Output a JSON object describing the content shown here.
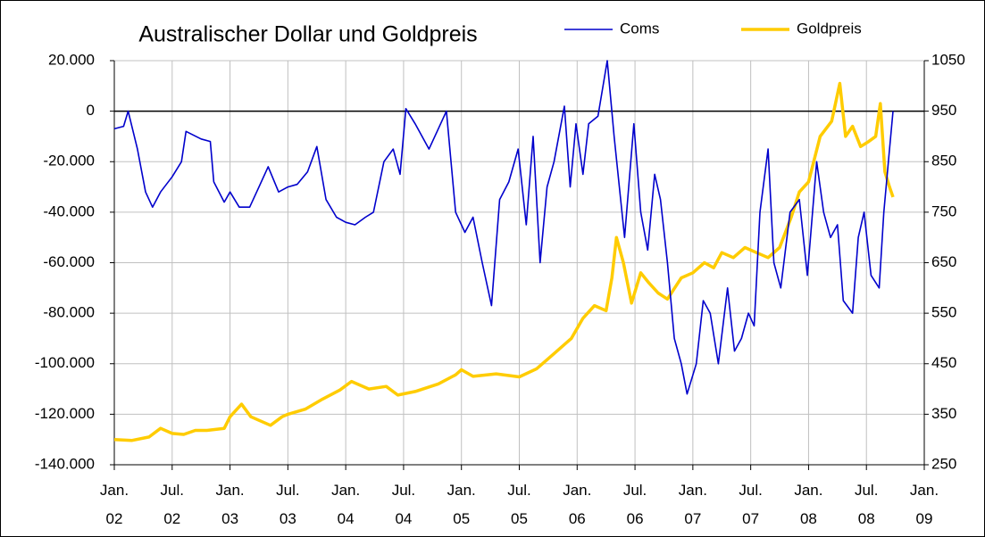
{
  "chart_data": {
    "type": "line",
    "title": "Australischer Dollar und Goldpreis",
    "series": [
      {
        "name": "Coms",
        "color": "#0000cc",
        "axis": "y",
        "x": [
          2002.0,
          2002.08,
          2002.12,
          2002.2,
          2002.27,
          2002.33,
          2002.4,
          2002.5,
          2002.58,
          2002.62,
          2002.75,
          2002.83,
          2002.86,
          2002.95,
          2003.0,
          2003.08,
          2003.17,
          2003.25,
          2003.33,
          2003.42,
          2003.5,
          2003.58,
          2003.67,
          2003.75,
          2003.83,
          2003.92,
          2004.0,
          2004.08,
          2004.17,
          2004.24,
          2004.33,
          2004.41,
          2004.47,
          2004.52,
          2004.6,
          2004.72,
          2004.79,
          2004.87,
          2004.95,
          2005.03,
          2005.1,
          2005.18,
          2005.26,
          2005.33,
          2005.41,
          2005.49,
          2005.56,
          2005.62,
          2005.68,
          2005.74,
          2005.8,
          2005.89,
          2005.94,
          2005.99,
          2006.05,
          2006.1,
          2006.18,
          2006.26,
          2006.32,
          2006.41,
          2006.49,
          2006.55,
          2006.61,
          2006.67,
          2006.72,
          2006.78,
          2006.84,
          2006.9,
          2006.95,
          2007.03,
          2007.09,
          2007.15,
          2007.22,
          2007.3,
          2007.36,
          2007.42,
          2007.48,
          2007.53,
          2007.58,
          2007.65,
          2007.7,
          2007.76,
          2007.84,
          2007.92,
          2007.99,
          2008.07,
          2008.13,
          2008.19,
          2008.25,
          2008.3,
          2008.38,
          2008.43,
          2008.48,
          2008.54,
          2008.61,
          2008.65,
          2008.69,
          2008.73
        ],
        "values": [
          -7000,
          -6000,
          0,
          -15000,
          -32000,
          -38000,
          -32000,
          -26000,
          -20000,
          -8000,
          -11000,
          -12000,
          -28000,
          -36000,
          -32000,
          -38000,
          -38000,
          -30000,
          -22000,
          -32000,
          -30000,
          -29000,
          -24000,
          -14000,
          -35000,
          -42000,
          -44000,
          -45000,
          -42000,
          -40000,
          -20000,
          -15000,
          -25000,
          1000,
          -5000,
          -15000,
          -8000,
          0,
          -40000,
          -48000,
          -42000,
          -60000,
          -77000,
          -35000,
          -28000,
          -15000,
          -45000,
          -10000,
          -60000,
          -30000,
          -20000,
          2000,
          -30000,
          -5000,
          -25000,
          -5000,
          -2000,
          20000,
          -10000,
          -50000,
          -5000,
          -40000,
          -55000,
          -25000,
          -35000,
          -60000,
          -90000,
          -100000,
          -112000,
          -100000,
          -75000,
          -80000,
          -100000,
          -70000,
          -95000,
          -90000,
          -80000,
          -85000,
          -40000,
          -15000,
          -60000,
          -70000,
          -40000,
          -35000,
          -65000,
          -20000,
          -40000,
          -50000,
          -45000,
          -75000,
          -80000,
          -50000,
          -40000,
          -65000,
          -70000,
          -40000,
          -20000,
          0
        ]
      },
      {
        "name": "Goldpreis",
        "color": "#ffcc00",
        "axis": "y2",
        "x": [
          2002.0,
          2002.15,
          2002.3,
          2002.4,
          2002.5,
          2002.6,
          2002.7,
          2002.8,
          2002.95,
          2003.0,
          2003.1,
          2003.18,
          2003.25,
          2003.35,
          2003.45,
          2003.5,
          2003.65,
          2003.8,
          2003.95,
          2004.05,
          2004.2,
          2004.35,
          2004.45,
          2004.6,
          2004.8,
          2004.95,
          2005.0,
          2005.1,
          2005.3,
          2005.5,
          2005.65,
          2005.8,
          2005.95,
          2006.05,
          2006.15,
          2006.25,
          2006.3,
          2006.34,
          2006.4,
          2006.47,
          2006.55,
          2006.62,
          2006.7,
          2006.78,
          2006.9,
          2007.0,
          2007.1,
          2007.18,
          2007.25,
          2007.35,
          2007.45,
          2007.55,
          2007.65,
          2007.75,
          2007.85,
          2007.92,
          2008.0,
          2008.1,
          2008.2,
          2008.27,
          2008.32,
          2008.38,
          2008.45,
          2008.52,
          2008.58,
          2008.62,
          2008.66,
          2008.7,
          2008.73
        ],
        "values": [
          300,
          298,
          305,
          322,
          312,
          310,
          318,
          318,
          322,
          345,
          370,
          345,
          338,
          328,
          345,
          350,
          360,
          380,
          398,
          415,
          400,
          405,
          388,
          395,
          410,
          428,
          438,
          425,
          430,
          424,
          440,
          470,
          500,
          540,
          565,
          555,
          620,
          700,
          650,
          570,
          630,
          610,
          590,
          578,
          620,
          630,
          650,
          640,
          670,
          660,
          680,
          670,
          660,
          680,
          740,
          790,
          810,
          900,
          930,
          1005,
          900,
          920,
          880,
          890,
          900,
          965,
          830,
          800,
          780
        ]
      }
    ],
    "xlim": [
      2002,
      2009
    ],
    "xticks": [
      {
        "value": 2002,
        "label": "Jan. 02"
      },
      {
        "value": 2002.5,
        "label": "Jul. 02"
      },
      {
        "value": 2003,
        "label": "Jan. 03"
      },
      {
        "value": 2003.5,
        "label": "Jul. 03"
      },
      {
        "value": 2004,
        "label": "Jan. 04"
      },
      {
        "value": 2004.5,
        "label": "Jul. 04"
      },
      {
        "value": 2005,
        "label": "Jan. 05"
      },
      {
        "value": 2005.5,
        "label": "Jul. 05"
      },
      {
        "value": 2006,
        "label": "Jan. 06"
      },
      {
        "value": 2006.5,
        "label": "Jul. 06"
      },
      {
        "value": 2007,
        "label": "Jan. 07"
      },
      {
        "value": 2007.5,
        "label": "Jul. 07"
      },
      {
        "value": 2008,
        "label": "Jan. 08"
      },
      {
        "value": 2008.5,
        "label": "Jul. 08"
      },
      {
        "value": 2009,
        "label": "Jan. 09"
      }
    ],
    "ylim": [
      -140000,
      20000
    ],
    "yticks": [
      {
        "value": 20000,
        "label": "20.000"
      },
      0,
      {
        "value": -20000,
        "label": "-20.000"
      },
      {
        "value": -40000,
        "label": "-40.000"
      },
      {
        "value": -60000,
        "label": "-60.000"
      },
      {
        "value": -80000,
        "label": "-80.000"
      },
      {
        "value": -100000,
        "label": "-100.000"
      },
      {
        "value": -120000,
        "label": "-120.000"
      },
      {
        "value": -140000,
        "label": "-140.000"
      }
    ],
    "y2lim": [
      250,
      1050
    ],
    "y2ticks": [
      1050,
      950,
      850,
      750,
      650,
      550,
      450,
      350,
      250
    ],
    "negative_tick_color": "#e00000",
    "zero_line": true,
    "grid": true
  }
}
